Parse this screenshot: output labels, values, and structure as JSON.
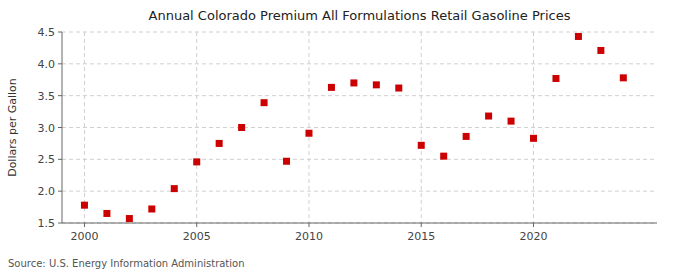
{
  "chart_data": {
    "type": "scatter",
    "title": "Annual Colorado Premium All Formulations Retail Gasoline Prices",
    "y_label": "Dollars per Gallon",
    "annotations": [
      "Source: U.S. Energy Information Administration"
    ],
    "x": [
      2000,
      2001,
      2002,
      2003,
      2004,
      2005,
      2006,
      2007,
      2008,
      2009,
      2010,
      2011,
      2012,
      2013,
      2014,
      2015,
      2016,
      2017,
      2018,
      2019,
      2020,
      2021,
      2022,
      2023,
      2024
    ],
    "values": [
      1.78,
      1.65,
      1.57,
      1.72,
      2.04,
      2.46,
      2.75,
      3.0,
      3.39,
      2.47,
      2.91,
      3.63,
      3.7,
      3.67,
      3.62,
      2.72,
      2.55,
      2.86,
      3.18,
      3.1,
      2.83,
      3.77,
      4.43,
      4.21,
      3.78
    ],
    "color": "#cc0000",
    "marker": "square",
    "xlim": [
      1999.0,
      2025.5
    ],
    "xticks": [
      2000,
      2005,
      2010,
      2015,
      2020
    ],
    "ylim": [
      1.5,
      4.5
    ],
    "yticks": [
      1.5,
      {
        "value": 2.0,
        "label": "2.0"
      },
      2.5,
      {
        "value": 3.0,
        "label": "3.0"
      },
      3.5,
      {
        "value": 4.0,
        "label": "4.0"
      },
      4.5
    ],
    "grid": true
  }
}
